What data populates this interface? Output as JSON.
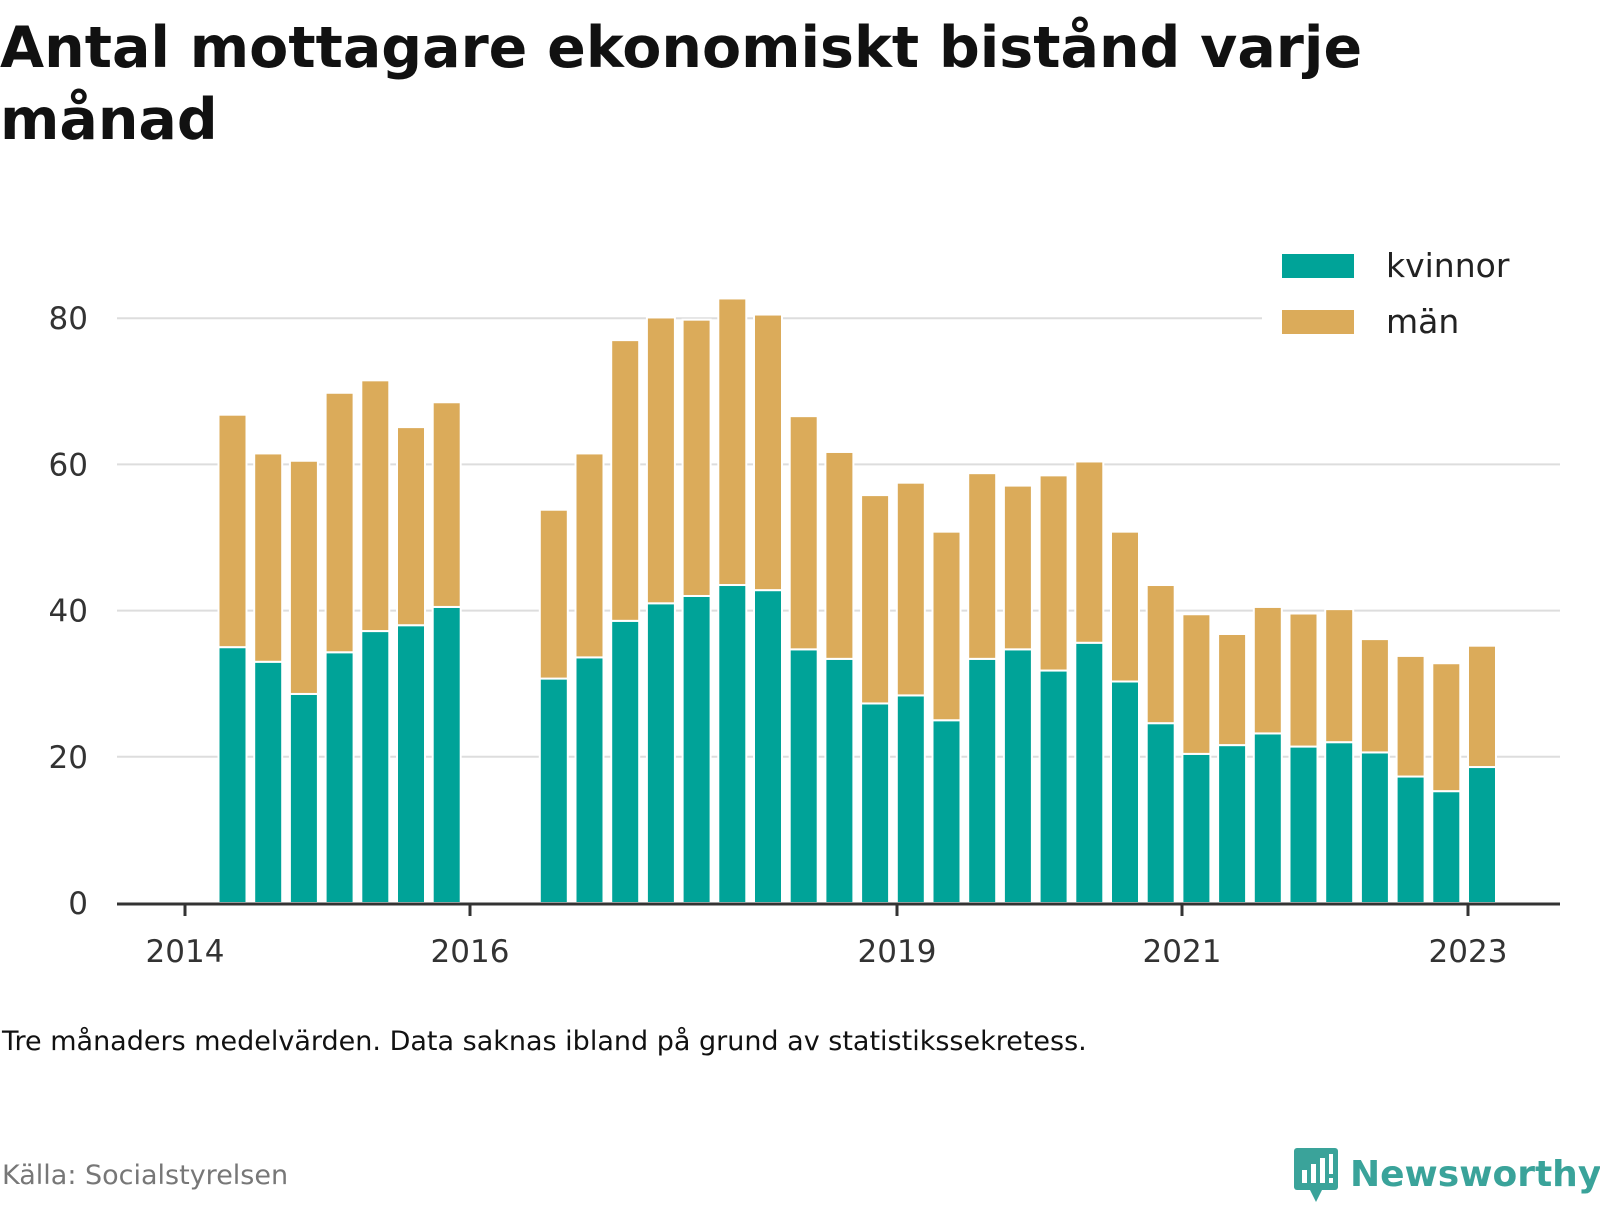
{
  "title": "Antal mottagare ekonomiskt bistånd varje månad",
  "note": "Tre månaders medelvärden. Data saknas ibland på grund av statistikssekretess.",
  "source": "Källa: Socialstyrelsen",
  "logo": {
    "text": "Newsworthy",
    "icon": "newsworthy-logo-icon",
    "color": "#3aa39a"
  },
  "chart_data": {
    "type": "bar",
    "stacked": true,
    "x_tick_labels": [
      "2014",
      "2016",
      "2019",
      "2021",
      "2023"
    ],
    "y_ticks": [
      0,
      20,
      40,
      60,
      80
    ],
    "ylim": [
      0,
      90
    ],
    "grid": true,
    "legend_position": "top-right",
    "series": [
      {
        "name": "kvinnor",
        "color": "#00a398",
        "values": [
          35,
          33,
          28.6,
          34.3,
          37.2,
          38,
          40.5,
          30.7,
          33.6,
          38.6,
          41,
          42,
          43.5,
          42.8,
          34.7,
          33.4,
          27.3,
          28.4,
          25,
          33.4,
          34.7,
          31.8,
          35.6,
          30.3,
          24.6,
          20.4,
          21.6,
          23.2,
          21.4,
          22,
          20.6,
          17.3,
          15.3,
          18.6
        ]
      },
      {
        "name": "män",
        "color": "#dbab5a",
        "values": [
          31.8,
          28.5,
          31.9,
          35.5,
          34.3,
          27.1,
          28,
          23.1,
          27.9,
          38.4,
          39.1,
          37.8,
          39.2,
          37.7,
          31.9,
          28.3,
          28.5,
          29.1,
          25.8,
          25.4,
          22.4,
          26.7,
          24.8,
          20.5,
          18.9,
          19.1,
          15.2,
          17.3,
          18.2,
          18.2,
          15.5,
          16.5,
          17.5,
          16.6
        ]
      }
    ]
  }
}
